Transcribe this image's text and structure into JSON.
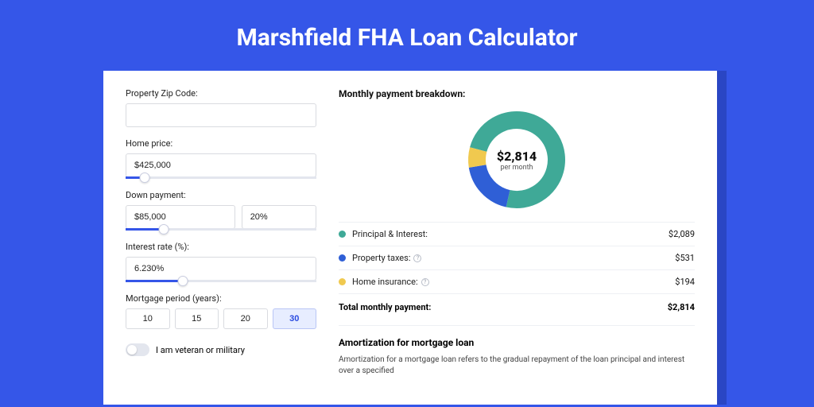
{
  "page": {
    "title": "Marshfield FHA Loan Calculator",
    "bg_color": "#3556e8",
    "card_bg": "#ffffff"
  },
  "form": {
    "zip_label": "Property Zip Code:",
    "zip_value": "",
    "home_price_label": "Home price:",
    "home_price_value": "$425,000",
    "home_price_slider_pct": 10,
    "down_payment_label": "Down payment:",
    "down_payment_value": "$85,000",
    "down_payment_pct_value": "20%",
    "down_payment_slider_pct": 20,
    "interest_label": "Interest rate (%):",
    "interest_value": "6.230%",
    "interest_slider_pct": 30,
    "period_label": "Mortgage period (years):",
    "period_options": [
      "10",
      "15",
      "20",
      "30"
    ],
    "period_selected": "30",
    "veteran_label": "I am veteran or military",
    "veteran_on": false
  },
  "breakdown": {
    "heading": "Monthly payment breakdown:",
    "center_value": "$2,814",
    "center_sub": "per month",
    "donut": {
      "radius": 50,
      "stroke": 22,
      "slices": [
        {
          "label": "Principal & Interest:",
          "value": "$2,089",
          "color": "#3fa997",
          "pct": 74.2
        },
        {
          "label": "Property taxes:",
          "value": "$531",
          "color": "#2f5fd6",
          "pct": 18.9,
          "info": true
        },
        {
          "label": "Home insurance:",
          "value": "$194",
          "color": "#f0c94f",
          "pct": 6.9,
          "info": true
        }
      ]
    },
    "total_label": "Total monthly payment:",
    "total_value": "$2,814"
  },
  "amortization": {
    "heading": "Amortization for mortgage loan",
    "text": "Amortization for a mortgage loan refers to the gradual repayment of the loan principal and interest over a specified"
  }
}
